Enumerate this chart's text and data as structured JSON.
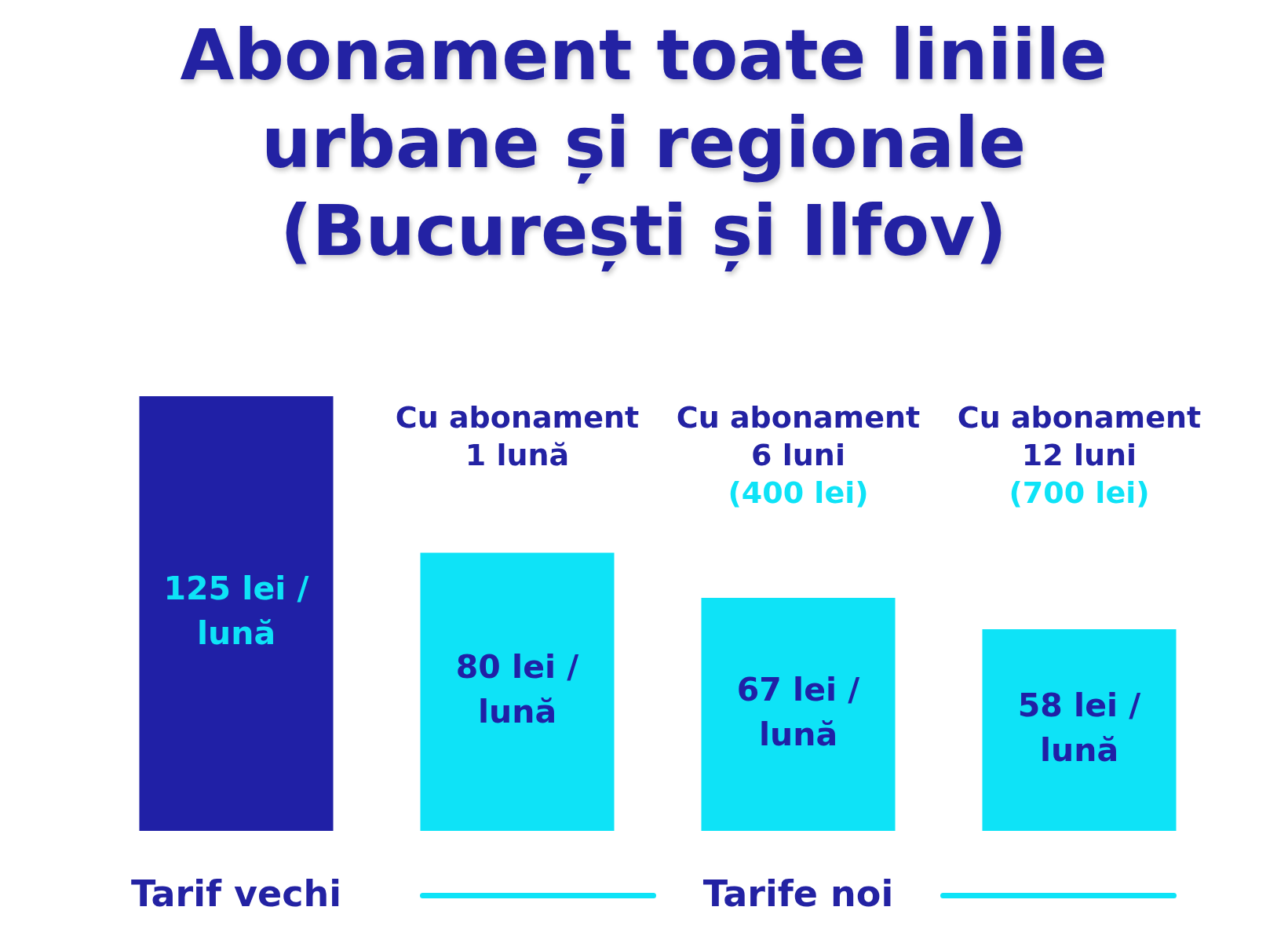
{
  "chart_data": {
    "type": "bar",
    "title": "Abonament toate liniile urbane și regionale (București și Ilfov)",
    "categories": [
      null,
      "Cu abonament 1 lună",
      "Cu abonament 6 luni",
      "Cu abonament 12 luni"
    ],
    "values": [
      125,
      80,
      67,
      58
    ],
    "colors": [
      "#2020a6",
      "#0ee3f7",
      "#0ee3f7",
      "#0ee3f7"
    ],
    "value_labels": [
      "125 lei / lună",
      "80 lei / lună",
      "67 lei / lună",
      "58 lei / lună"
    ],
    "annotations": [
      "(400 lei)",
      "(700 lei)",
      "Tarif vechi",
      "Tarife noi"
    ]
  }
}
